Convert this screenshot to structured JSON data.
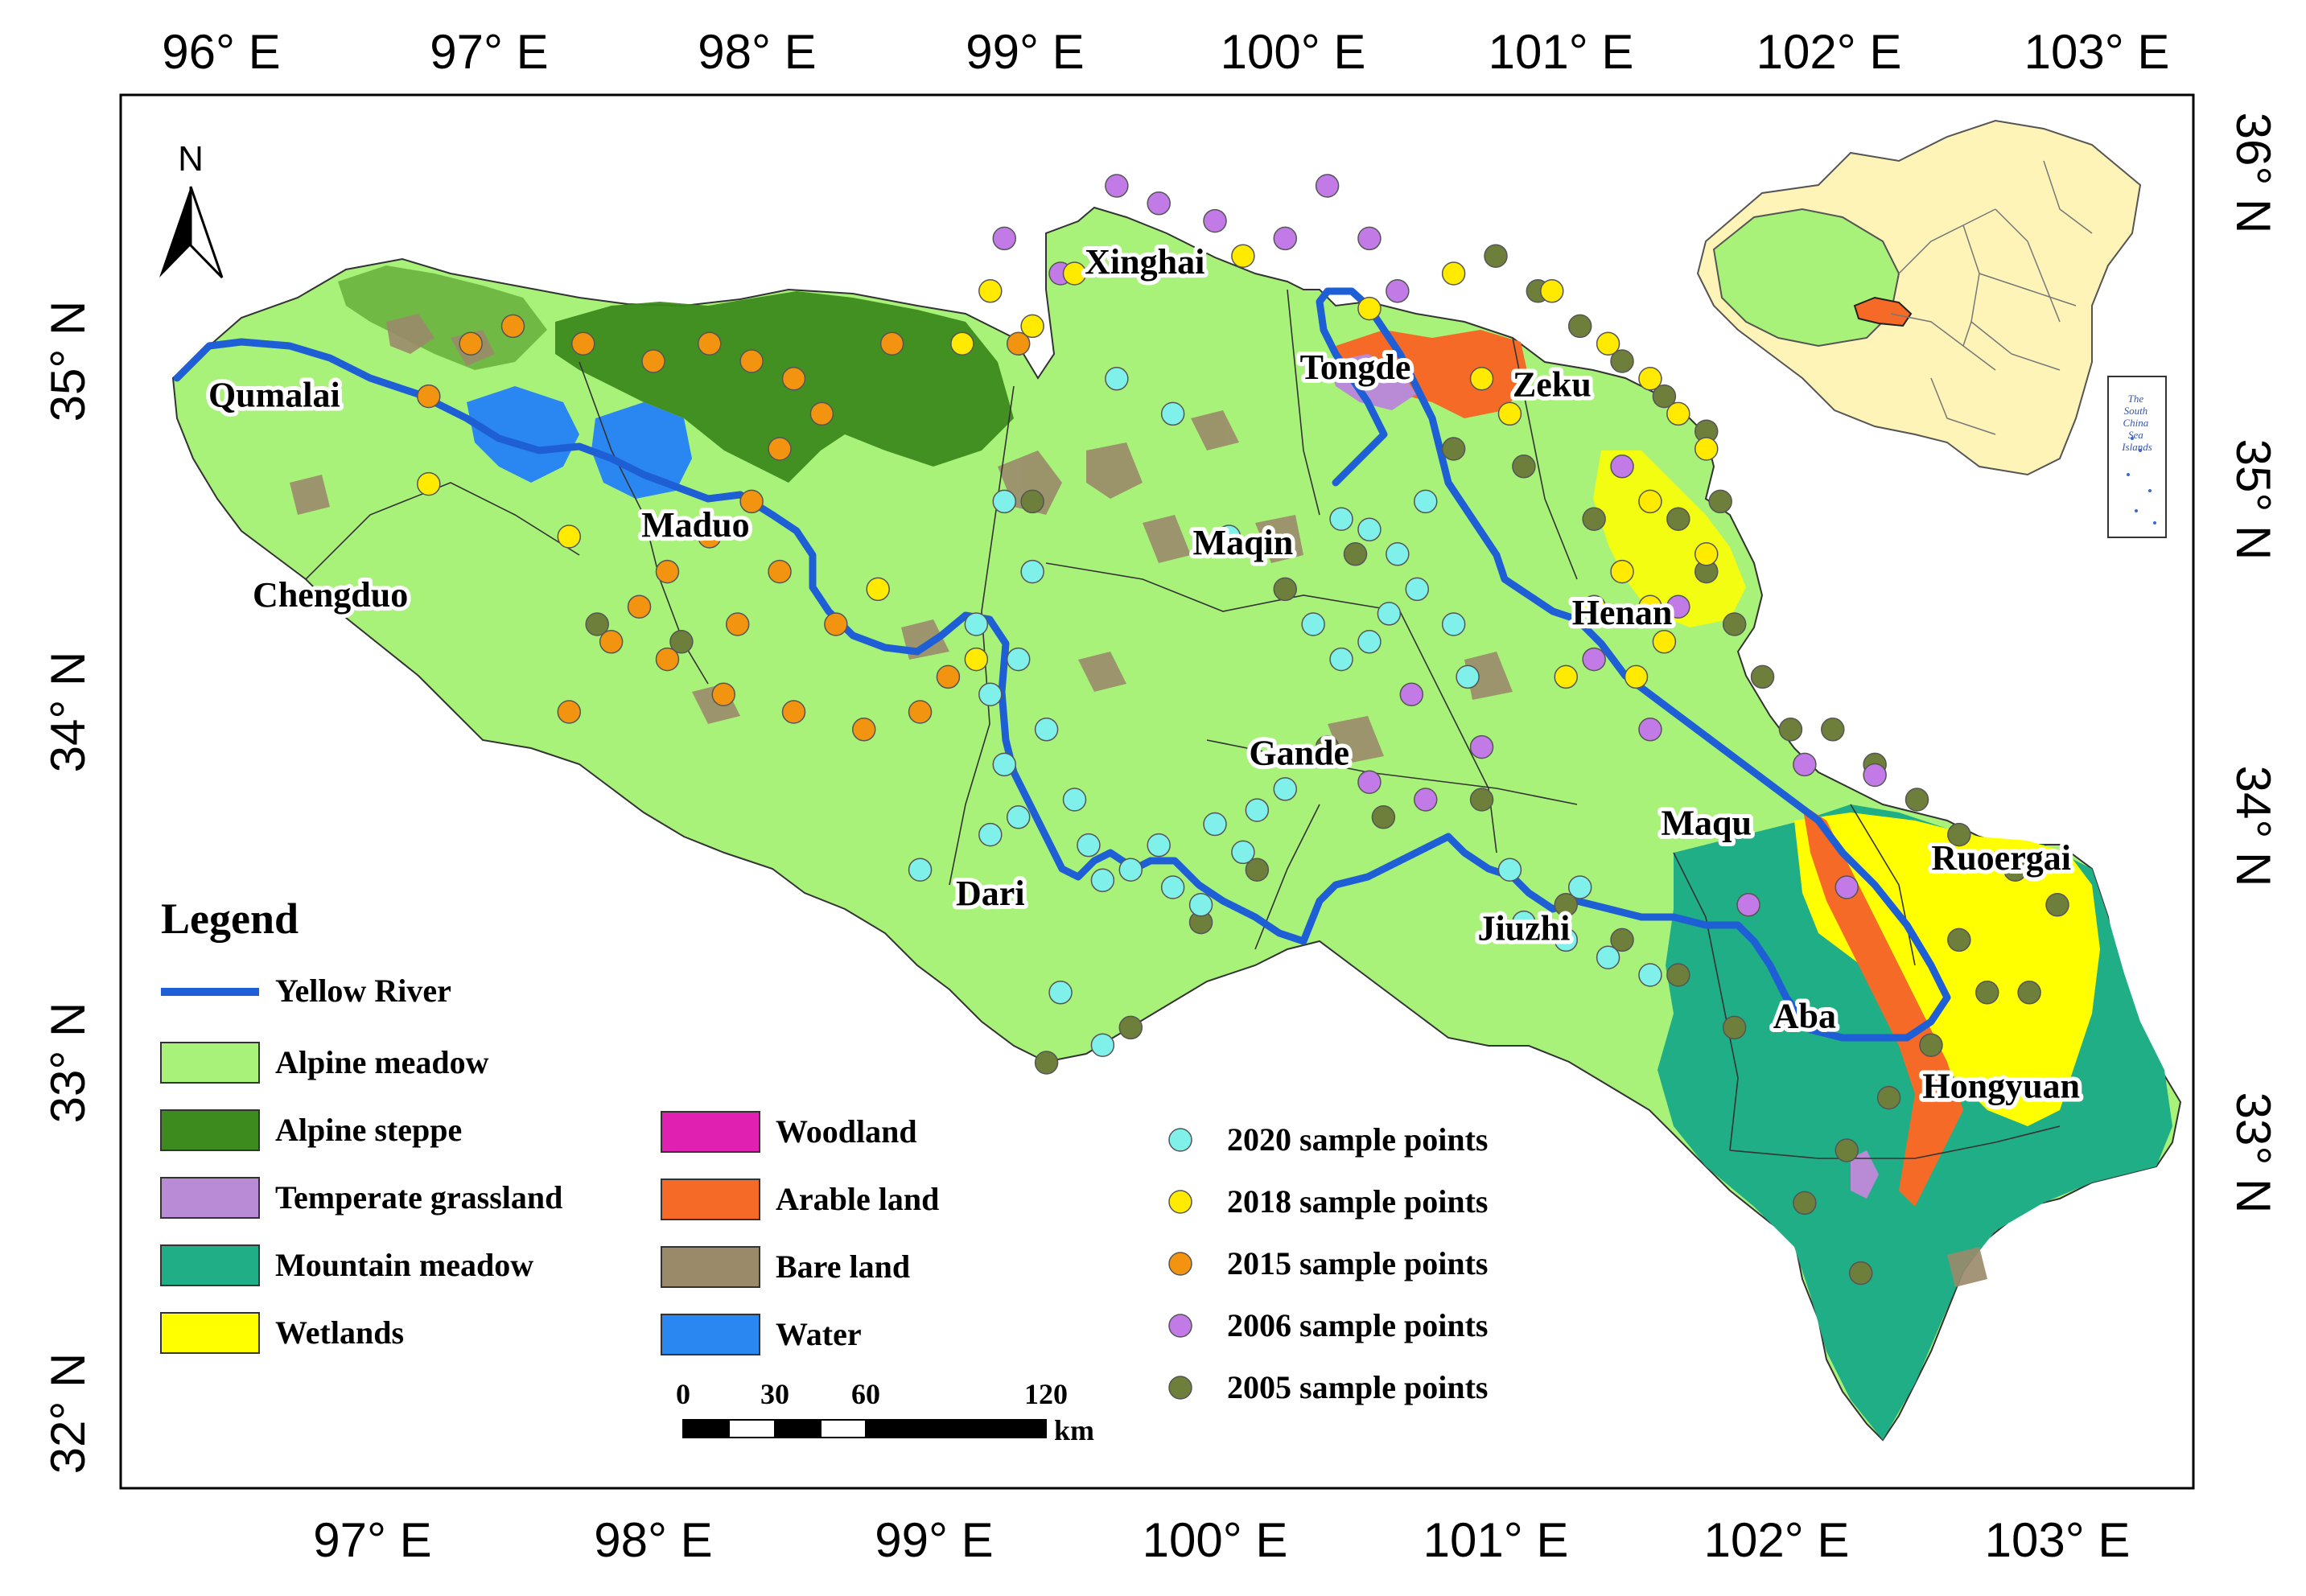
{
  "map": {
    "axes": {
      "top_lon": [
        "96° E",
        "97° E",
        "98° E",
        "99° E",
        "100° E",
        "101° E",
        "102° E",
        "103° E"
      ],
      "bottom_lon": [
        "97° E",
        "98° E",
        "99° E",
        "100° E",
        "101° E",
        "102° E",
        "103° E"
      ],
      "left_lat": [
        "35° N",
        "34° N",
        "33° N",
        "32° N"
      ],
      "right_lat": [
        "36° N",
        "35° N",
        "34° N",
        "33° N"
      ]
    },
    "north_arrow": {
      "label": "N",
      "icon": "north-arrow-icon"
    },
    "counties": [
      {
        "name": "Qumalai",
        "lon": 96.65,
        "lat": 34.87
      },
      {
        "name": "Chengduo",
        "lon": 96.85,
        "lat": 34.3
      },
      {
        "name": "Maduo",
        "lon": 98.15,
        "lat": 34.5
      },
      {
        "name": "Xinghai",
        "lon": 99.75,
        "lat": 35.25
      },
      {
        "name": "Tongde",
        "lon": 100.5,
        "lat": 34.95
      },
      {
        "name": "Zeku",
        "lon": 101.2,
        "lat": 34.9
      },
      {
        "name": "Maqin",
        "lon": 100.1,
        "lat": 34.45
      },
      {
        "name": "Henan",
        "lon": 101.45,
        "lat": 34.25
      },
      {
        "name": "Gande",
        "lon": 100.3,
        "lat": 33.85
      },
      {
        "name": "Dari",
        "lon": 99.2,
        "lat": 33.45
      },
      {
        "name": "Jiuzhi",
        "lon": 101.1,
        "lat": 33.35
      },
      {
        "name": "Maqu",
        "lon": 101.75,
        "lat": 33.65
      },
      {
        "name": "Ruoergai",
        "lon": 102.8,
        "lat": 33.55
      },
      {
        "name": "Aba",
        "lon": 102.1,
        "lat": 33.1
      },
      {
        "name": "Hongyuan",
        "lon": 102.8,
        "lat": 32.9
      }
    ],
    "legend": {
      "title": "Legend",
      "river": {
        "label": "Yellow River",
        "color": "#1f5fd6"
      },
      "classes_left": [
        {
          "label": "Alpine meadow",
          "color": "#a8f27a"
        },
        {
          "label": "Alpine steppe",
          "color": "#3d8a1e"
        },
        {
          "label": "Temperate grassland",
          "color": "#b98ad6"
        },
        {
          "label": "Mountain meadow",
          "color": "#1fae86"
        },
        {
          "label": "Wetlands",
          "color": "#ffff00"
        }
      ],
      "classes_right": [
        {
          "label": "Woodland",
          "color": "#e020b0"
        },
        {
          "label": "Arable land",
          "color": "#f56a26"
        },
        {
          "label": "Bare land",
          "color": "#9a8a6a"
        },
        {
          "label": "Water",
          "color": "#2a86f0"
        }
      ],
      "sample_sets": [
        {
          "label": "2020 sample points",
          "color": "#7ff0ea"
        },
        {
          "label": "2018 sample points",
          "color": "#ffea00"
        },
        {
          "label": "2015 sample points",
          "color": "#f39410"
        },
        {
          "label": "2006 sample points",
          "color": "#c27ae6"
        },
        {
          "label": "2005 sample points",
          "color": "#6e7f3c"
        }
      ]
    },
    "scale_bar": {
      "labels": [
        "0",
        "30",
        "60",
        "120"
      ],
      "unit": "km"
    },
    "inset": {
      "south_china_sea_text": [
        "The",
        "South",
        "China",
        "Sea",
        "Islands"
      ]
    },
    "samples": {
      "2020": [
        [
          99.25,
          34.6
        ],
        [
          99.35,
          34.4
        ],
        [
          99.15,
          34.25
        ],
        [
          99.3,
          34.15
        ],
        [
          99.2,
          34.05
        ],
        [
          99.4,
          33.95
        ],
        [
          99.25,
          33.85
        ],
        [
          99.3,
          33.7
        ],
        [
          99.5,
          33.75
        ],
        [
          99.55,
          33.62
        ],
        [
          99.6,
          33.52
        ],
        [
          99.7,
          33.55
        ],
        [
          99.8,
          33.62
        ],
        [
          99.85,
          33.5
        ],
        [
          99.95,
          33.45
        ],
        [
          100.0,
          33.68
        ],
        [
          100.1,
          33.6
        ],
        [
          100.15,
          33.72
        ],
        [
          100.25,
          33.78
        ],
        [
          100.35,
          34.25
        ],
        [
          100.45,
          34.15
        ],
        [
          100.55,
          34.2
        ],
        [
          100.62,
          34.28
        ],
        [
          100.72,
          34.35
        ],
        [
          100.65,
          34.45
        ],
        [
          100.55,
          34.52
        ],
        [
          100.75,
          34.6
        ],
        [
          100.85,
          34.25
        ],
        [
          100.9,
          34.1
        ],
        [
          101.05,
          33.55
        ],
        [
          101.1,
          33.4
        ],
        [
          101.25,
          33.35
        ],
        [
          101.4,
          33.3
        ],
        [
          101.55,
          33.25
        ],
        [
          101.3,
          33.5
        ],
        [
          99.6,
          33.05
        ],
        [
          99.45,
          33.2
        ],
        [
          98.95,
          33.55
        ],
        [
          99.2,
          33.65
        ],
        [
          99.65,
          34.95
        ],
        [
          99.85,
          34.85
        ],
        [
          100.05,
          34.5
        ],
        [
          100.45,
          34.55
        ]
      ],
      "2018": [
        [
          99.2,
          35.2
        ],
        [
          99.35,
          35.1
        ],
        [
          99.5,
          35.25
        ],
        [
          99.1,
          35.05
        ],
        [
          100.1,
          35.3
        ],
        [
          100.55,
          35.15
        ],
        [
          100.85,
          35.25
        ],
        [
          101.2,
          35.2
        ],
        [
          101.4,
          35.05
        ],
        [
          101.55,
          34.95
        ],
        [
          101.65,
          34.85
        ],
        [
          101.75,
          34.75
        ],
        [
          101.55,
          34.6
        ],
        [
          101.45,
          34.4
        ],
        [
          101.35,
          34.3
        ],
        [
          101.6,
          34.2
        ],
        [
          101.5,
          34.1
        ],
        [
          101.75,
          34.45
        ],
        [
          101.55,
          34.3
        ],
        [
          101.25,
          34.1
        ],
        [
          99.15,
          34.15
        ],
        [
          98.8,
          34.35
        ],
        [
          97.7,
          34.5
        ],
        [
          97.2,
          34.65
        ],
        [
          100.95,
          34.95
        ],
        [
          101.05,
          34.85
        ]
      ],
      "2015": [
        [
          97.35,
          35.05
        ],
        [
          97.5,
          35.1
        ],
        [
          97.75,
          35.05
        ],
        [
          98.0,
          35.0
        ],
        [
          98.2,
          35.05
        ],
        [
          98.35,
          35.0
        ],
        [
          98.5,
          34.95
        ],
        [
          98.6,
          34.85
        ],
        [
          98.45,
          34.75
        ],
        [
          98.35,
          34.6
        ],
        [
          98.2,
          34.5
        ],
        [
          98.05,
          34.4
        ],
        [
          97.95,
          34.3
        ],
        [
          97.85,
          34.2
        ],
        [
          98.05,
          34.15
        ],
        [
          98.25,
          34.05
        ],
        [
          98.5,
          34.0
        ],
        [
          98.75,
          33.95
        ],
        [
          98.95,
          34.0
        ],
        [
          99.05,
          34.1
        ],
        [
          98.65,
          34.25
        ],
        [
          98.45,
          34.4
        ],
        [
          98.3,
          34.25
        ],
        [
          97.7,
          34.0
        ],
        [
          97.2,
          34.9
        ],
        [
          99.3,
          35.05
        ],
        [
          98.85,
          35.05
        ]
      ],
      "2006": [
        [
          99.65,
          35.5
        ],
        [
          99.8,
          35.45
        ],
        [
          100.0,
          35.4
        ],
        [
          100.25,
          35.35
        ],
        [
          100.4,
          35.5
        ],
        [
          100.55,
          35.35
        ],
        [
          100.65,
          35.2
        ],
        [
          101.45,
          34.7
        ],
        [
          101.65,
          34.3
        ],
        [
          101.35,
          34.15
        ],
        [
          101.55,
          33.95
        ],
        [
          102.1,
          33.85
        ],
        [
          102.35,
          33.82
        ],
        [
          101.9,
          33.45
        ],
        [
          102.25,
          33.5
        ],
        [
          100.7,
          34.05
        ],
        [
          100.95,
          33.9
        ],
        [
          100.55,
          33.8
        ],
        [
          100.75,
          33.75
        ],
        [
          99.25,
          35.35
        ],
        [
          99.45,
          35.25
        ]
      ],
      "2005": [
        [
          101.0,
          35.3
        ],
        [
          101.15,
          35.2
        ],
        [
          101.3,
          35.1
        ],
        [
          101.45,
          35.0
        ],
        [
          101.6,
          34.9
        ],
        [
          101.75,
          34.8
        ],
        [
          101.8,
          34.6
        ],
        [
          101.65,
          34.55
        ],
        [
          101.75,
          34.4
        ],
        [
          101.85,
          34.25
        ],
        [
          101.95,
          34.1
        ],
        [
          102.05,
          33.95
        ],
        [
          102.2,
          33.95
        ],
        [
          102.35,
          33.85
        ],
        [
          102.5,
          33.75
        ],
        [
          102.65,
          33.65
        ],
        [
          102.85,
          33.55
        ],
        [
          103.0,
          33.45
        ],
        [
          102.75,
          33.2
        ],
        [
          102.55,
          33.05
        ],
        [
          102.4,
          32.9
        ],
        [
          102.25,
          32.75
        ],
        [
          102.1,
          32.6
        ],
        [
          102.3,
          32.4
        ],
        [
          101.85,
          33.1
        ],
        [
          101.65,
          33.25
        ],
        [
          101.45,
          33.35
        ],
        [
          101.25,
          33.45
        ],
        [
          100.95,
          33.75
        ],
        [
          100.6,
          33.7
        ],
        [
          100.4,
          33.9
        ],
        [
          100.15,
          33.55
        ],
        [
          99.95,
          33.4
        ],
        [
          99.7,
          33.1
        ],
        [
          99.4,
          33.0
        ],
        [
          100.25,
          34.35
        ],
        [
          100.5,
          34.45
        ],
        [
          99.35,
          34.6
        ],
        [
          98.1,
          34.2
        ],
        [
          97.8,
          34.25
        ],
        [
          101.1,
          34.7
        ],
        [
          100.85,
          34.75
        ],
        [
          101.35,
          34.55
        ],
        [
          102.9,
          33.2
        ],
        [
          102.65,
          33.35
        ]
      ]
    }
  }
}
